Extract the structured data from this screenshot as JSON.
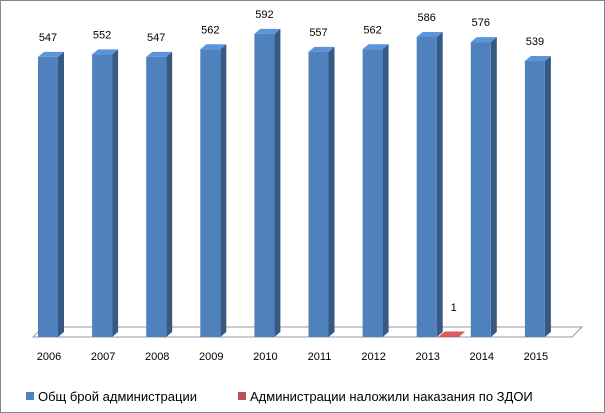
{
  "chart_data": {
    "type": "bar3d",
    "categories": [
      "2006",
      "2007",
      "2008",
      "2009",
      "2010",
      "2011",
      "2012",
      "2013",
      "2014",
      "2015"
    ],
    "series": [
      {
        "name": "Общ брой администрации",
        "color": "#4f81bd",
        "values": [
          547,
          552,
          547,
          562,
          592,
          557,
          562,
          586,
          576,
          539
        ]
      },
      {
        "name": "Администрации наложили наказания по ЗДОИ",
        "color": "#c0504d",
        "values": [
          null,
          null,
          null,
          null,
          null,
          null,
          null,
          1,
          null,
          null
        ]
      }
    ],
    "legend": "bottom"
  }
}
